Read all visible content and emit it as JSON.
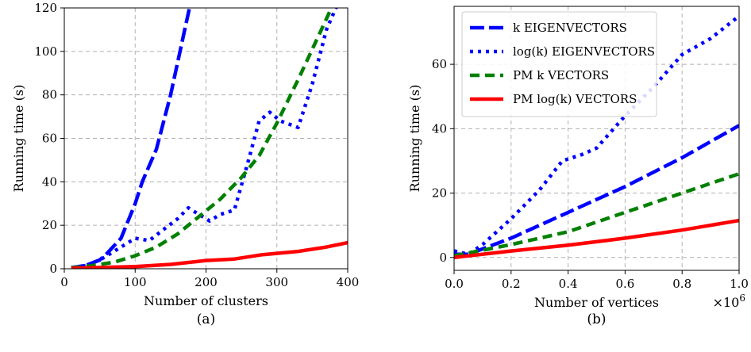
{
  "chart_data": [
    {
      "type": "line",
      "caption": "(a)",
      "xlabel": "Number of clusters",
      "ylabel": "Running time (s)",
      "xlim": [
        0,
        400
      ],
      "ylim": [
        0,
        120
      ],
      "xticks": [
        "0",
        "100",
        "200",
        "300",
        "400"
      ],
      "yticks": [
        "0",
        "20",
        "40",
        "60",
        "80",
        "100",
        "120"
      ],
      "grid": true,
      "series": [
        {
          "key": "k_eig",
          "color": "#0000ff",
          "dash": "dashed-long",
          "points": [
            [
              10,
              0.5
            ],
            [
              30,
              1.5
            ],
            [
              50,
              4
            ],
            [
              60,
              7
            ],
            [
              80,
              14
            ],
            [
              100,
              30
            ],
            [
              110,
              40
            ],
            [
              130,
              55
            ],
            [
              150,
              80
            ],
            [
              170,
              110
            ],
            [
              180,
              125
            ]
          ]
        },
        {
          "key": "log_eig",
          "color": "#0000ff",
          "dash": "dotted",
          "points": [
            [
              10,
              0.5
            ],
            [
              30,
              1.5
            ],
            [
              50,
              4
            ],
            [
              60,
              6
            ],
            [
              80,
              10
            ],
            [
              100,
              14
            ],
            [
              120,
              13
            ],
            [
              140,
              18
            ],
            [
              160,
              23
            ],
            [
              175,
              28
            ],
            [
              190,
              25
            ],
            [
              205,
              22
            ],
            [
              220,
              25
            ],
            [
              240,
              27
            ],
            [
              260,
              50
            ],
            [
              275,
              68
            ],
            [
              290,
              72
            ],
            [
              305,
              68
            ],
            [
              330,
              65
            ],
            [
              350,
              85
            ],
            [
              370,
              110
            ],
            [
              390,
              125
            ]
          ]
        },
        {
          "key": "pm_k",
          "color": "#008000",
          "dash": "dashed",
          "points": [
            [
              10,
              0.5
            ],
            [
              30,
              1
            ],
            [
              50,
              2
            ],
            [
              70,
              3
            ],
            [
              100,
              6
            ],
            [
              130,
              10
            ],
            [
              160,
              16
            ],
            [
              190,
              24
            ],
            [
              220,
              32
            ],
            [
              250,
              42
            ],
            [
              275,
              52
            ],
            [
              300,
              67
            ],
            [
              330,
              87
            ],
            [
              360,
              108
            ],
            [
              380,
              122
            ]
          ]
        },
        {
          "key": "pm_log",
          "color": "#ff0000",
          "dash": "solid",
          "points": [
            [
              10,
              0.3
            ],
            [
              50,
              0.6
            ],
            [
              100,
              1
            ],
            [
              150,
              2
            ],
            [
              200,
              3.8
            ],
            [
              240,
              4.5
            ],
            [
              280,
              6.5
            ],
            [
              330,
              8
            ],
            [
              370,
              10
            ],
            [
              400,
              12
            ]
          ]
        }
      ]
    },
    {
      "type": "line",
      "caption": "(b)",
      "xlabel": "Number of vertices",
      "ylabel": "Running time (s)",
      "x_multiplier": "×10",
      "x_multiplier_exp": "6",
      "xlim": [
        0,
        1.0
      ],
      "ylim": [
        -4,
        78
      ],
      "xticks": [
        "0.0",
        "0.2",
        "0.4",
        "0.6",
        "0.8",
        "1.0"
      ],
      "yticks": [
        "0",
        "20",
        "40",
        "60"
      ],
      "grid": true,
      "legend_position": "top-left",
      "series": [
        {
          "key": "k_eig",
          "color": "#0000ff",
          "dash": "dashed-long",
          "legend_main": "k",
          "legend_rest": " EIGENVECTORS",
          "points": [
            [
              0.0,
              1
            ],
            [
              0.05,
              1
            ],
            [
              0.2,
              6
            ],
            [
              0.4,
              14
            ],
            [
              0.6,
              22
            ],
            [
              0.8,
              31
            ],
            [
              1.0,
              41
            ]
          ]
        },
        {
          "key": "log_eig",
          "color": "#0000ff",
          "dash": "dotted",
          "legend_main": "log(k)",
          "legend_rest": " EIGENVECTORS",
          "points": [
            [
              0.0,
              2
            ],
            [
              0.05,
              1
            ],
            [
              0.1,
              4
            ],
            [
              0.2,
              12
            ],
            [
              0.3,
              21
            ],
            [
              0.38,
              30
            ],
            [
              0.45,
              32
            ],
            [
              0.5,
              34
            ],
            [
              0.6,
              44
            ],
            [
              0.7,
              53
            ],
            [
              0.8,
              63
            ],
            [
              0.9,
              68
            ],
            [
              1.0,
              75
            ]
          ]
        },
        {
          "key": "pm_k",
          "color": "#008000",
          "dash": "dashed",
          "legend_main": "PM k",
          "legend_rest": " VECTORS",
          "points": [
            [
              0.0,
              0.5
            ],
            [
              0.2,
              4
            ],
            [
              0.4,
              8
            ],
            [
              0.6,
              14
            ],
            [
              0.8,
              20
            ],
            [
              1.0,
              26
            ]
          ]
        },
        {
          "key": "pm_log",
          "color": "#ff0000",
          "dash": "solid",
          "legend_main": "PM log(k)",
          "legend_rest": " VECTORS",
          "points": [
            [
              0.0,
              0
            ],
            [
              0.2,
              2
            ],
            [
              0.4,
              3.8
            ],
            [
              0.6,
              6
            ],
            [
              0.8,
              8.5
            ],
            [
              1.0,
              11.5
            ]
          ]
        }
      ]
    }
  ]
}
